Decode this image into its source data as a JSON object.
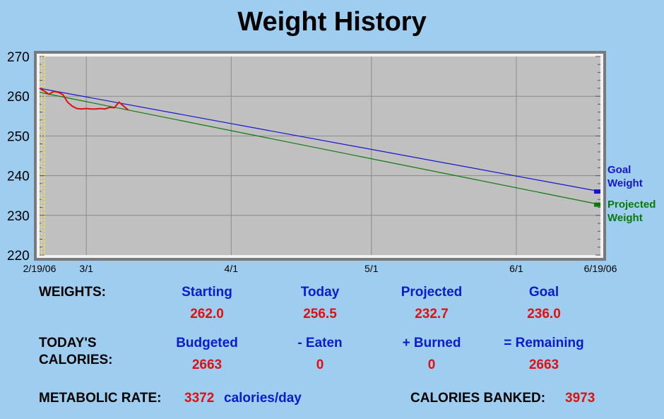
{
  "title": "Weight History",
  "chart_data": {
    "type": "line",
    "title": "Weight History",
    "x_start": "2/19/06",
    "x_end": "6/19/06",
    "x_ticks": [
      "2/19/06",
      "3/1",
      "4/1",
      "5/1",
      "6/1",
      "6/19/06"
    ],
    "y_ticks": [
      270,
      260,
      250,
      240,
      230,
      220
    ],
    "ylim": [
      220,
      270
    ],
    "grid": true,
    "series": [
      {
        "name": "Goal Weight",
        "color": "#1515cc",
        "points": [
          [
            "2/19/06",
            262.0
          ],
          [
            "6/19/06",
            236.0
          ]
        ]
      },
      {
        "name": "Projected Weight",
        "color": "#0a7a0a",
        "points": [
          [
            "2/19/06",
            261.0
          ],
          [
            "6/19/06",
            232.7
          ]
        ]
      },
      {
        "name": "",
        "color": "#e01010",
        "points": [
          [
            "2/19/06",
            262.0
          ],
          [
            "2/20/06",
            261.3
          ],
          [
            "2/21/06",
            260.5
          ],
          [
            "2/22/06",
            261.2
          ],
          [
            "2/23/06",
            261.0
          ],
          [
            "2/24/06",
            260.4
          ],
          [
            "2/25/06",
            258.5
          ],
          [
            "2/26/06",
            257.5
          ],
          [
            "2/27/06",
            256.9
          ],
          [
            "2/28/06",
            256.8
          ],
          [
            "3/1/06",
            256.9
          ],
          [
            "3/2/06",
            256.8
          ],
          [
            "3/3/06",
            256.8
          ],
          [
            "3/4/06",
            256.9
          ],
          [
            "3/5/06",
            256.8
          ],
          [
            "3/6/06",
            257.2
          ],
          [
            "3/7/06",
            257.1
          ],
          [
            "3/8/06",
            258.5
          ],
          [
            "3/9/06",
            257.5
          ],
          [
            "3/10/06",
            256.5
          ]
        ]
      }
    ],
    "legend": [
      {
        "text": [
          "Goal",
          "Weight"
        ],
        "color": "#1515cc"
      },
      {
        "text": [
          "Projected",
          "Weight"
        ],
        "color": "#0a7a0a"
      }
    ]
  },
  "weights": {
    "label": "WEIGHTS:",
    "headers": [
      "Starting",
      "Today",
      "Projected",
      "Goal"
    ],
    "values": [
      "262.0",
      "256.5",
      "232.7",
      "236.0"
    ]
  },
  "calories": {
    "label_line1": "TODAY'S",
    "label_line2": "CALORIES:",
    "headers": [
      "Budgeted",
      "- Eaten",
      "+ Burned",
      "= Remaining"
    ],
    "values": [
      "2663",
      "0",
      "0",
      "2663"
    ]
  },
  "metabolic": {
    "label": "METABOLIC RATE:",
    "value": "3372",
    "unit": "calories/day"
  },
  "banked": {
    "label": "CALORIES BANKED:",
    "value": "3973"
  }
}
